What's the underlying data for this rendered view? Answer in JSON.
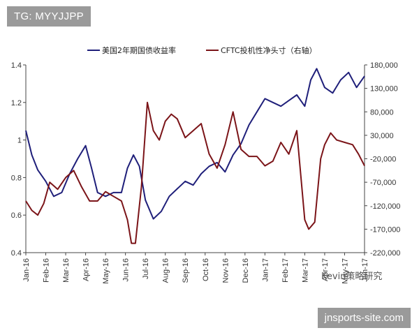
{
  "badge": {
    "text": "TG: MYYJJPP"
  },
  "footer": {
    "text": "jnsports-site.com"
  },
  "watermark": {
    "text": "Kevin策略研究"
  },
  "colors": {
    "navy": "#1f1f7a",
    "maroon": "#7b1418",
    "axis": "#444444",
    "grid": "#e6e6e6"
  },
  "chart_data": {
    "type": "line",
    "x_labels": [
      "Jan-16",
      "Feb-16",
      "Mar-16",
      "Apr-16",
      "May-16",
      "Jun-16",
      "Jul-16",
      "Aug-16",
      "Sep-16",
      "Oct-16",
      "Nov-16",
      "Dec-16",
      "Jan-17",
      "Feb-17",
      "Mar-17",
      "Apr-17",
      "May-17",
      "Jun-17"
    ],
    "y_left": {
      "min": 0.4,
      "max": 1.4,
      "ticks": [
        "1.4",
        "1.2",
        "1",
        "0.8",
        "0.6",
        "0.4"
      ],
      "tick_values": [
        1.4,
        1.2,
        1.0,
        0.8,
        0.6,
        0.4
      ]
    },
    "y_right": {
      "min": -220000,
      "max": 180000,
      "ticks": [
        "180,000",
        "130,000",
        "80,000",
        "30,000",
        "-20,000",
        "-70,000",
        "-120,000",
        "-170,000",
        "-220,000"
      ],
      "tick_values": [
        180000,
        130000,
        80000,
        30000,
        -20000,
        -70000,
        -120000,
        -170000,
        -220000
      ]
    },
    "legend_position": "top",
    "series": [
      {
        "name": "美国2年期国债收益率",
        "axis": "left",
        "x": [
          0,
          0.3,
          0.6,
          1.0,
          1.4,
          1.8,
          2.2,
          2.6,
          3.0,
          3.3,
          3.6,
          4.0,
          4.4,
          4.8,
          5.1,
          5.4,
          5.7,
          6.0,
          6.4,
          6.8,
          7.2,
          7.6,
          8.0,
          8.4,
          8.8,
          9.2,
          9.6,
          10.0,
          10.4,
          10.8,
          11.2,
          11.6,
          12.0,
          12.4,
          12.8,
          13.2,
          13.6,
          14.0,
          14.3,
          14.6,
          15.0,
          15.4,
          15.8,
          16.2,
          16.6,
          17.0
        ],
        "values": [
          1.05,
          0.92,
          0.84,
          0.78,
          0.7,
          0.72,
          0.82,
          0.9,
          0.97,
          0.85,
          0.72,
          0.7,
          0.72,
          0.72,
          0.85,
          0.92,
          0.86,
          0.68,
          0.58,
          0.62,
          0.7,
          0.74,
          0.78,
          0.76,
          0.82,
          0.86,
          0.88,
          0.83,
          0.92,
          0.98,
          1.08,
          1.15,
          1.22,
          1.2,
          1.18,
          1.21,
          1.24,
          1.18,
          1.32,
          1.38,
          1.28,
          1.25,
          1.32,
          1.36,
          1.28,
          1.34
        ]
      },
      {
        "name": "CFTC投机性净头寸（右轴）",
        "axis": "right",
        "x": [
          0,
          0.3,
          0.6,
          0.9,
          1.2,
          1.6,
          2.0,
          2.4,
          2.8,
          3.2,
          3.6,
          4.0,
          4.4,
          4.8,
          5.1,
          5.3,
          5.5,
          5.8,
          6.1,
          6.4,
          6.7,
          7.0,
          7.3,
          7.6,
          8.0,
          8.4,
          8.8,
          9.2,
          9.6,
          10.0,
          10.4,
          10.8,
          11.2,
          11.6,
          12.0,
          12.4,
          12.8,
          13.2,
          13.6,
          14.0,
          14.2,
          14.5,
          14.8,
          15.0,
          15.3,
          15.6,
          16.0,
          16.4,
          16.7,
          17.0
        ],
        "values": [
          -110000,
          -130000,
          -140000,
          -115000,
          -70000,
          -85000,
          -60000,
          -45000,
          -80000,
          -110000,
          -110000,
          -90000,
          -100000,
          -110000,
          -150000,
          -200000,
          -200000,
          -80000,
          100000,
          40000,
          20000,
          60000,
          75000,
          65000,
          25000,
          40000,
          55000,
          -10000,
          -40000,
          10000,
          80000,
          0,
          -15000,
          -15000,
          -35000,
          -25000,
          15000,
          -10000,
          40000,
          -150000,
          -170000,
          -155000,
          -20000,
          10000,
          35000,
          20000,
          15000,
          10000,
          -10000,
          -35000
        ]
      }
    ]
  }
}
